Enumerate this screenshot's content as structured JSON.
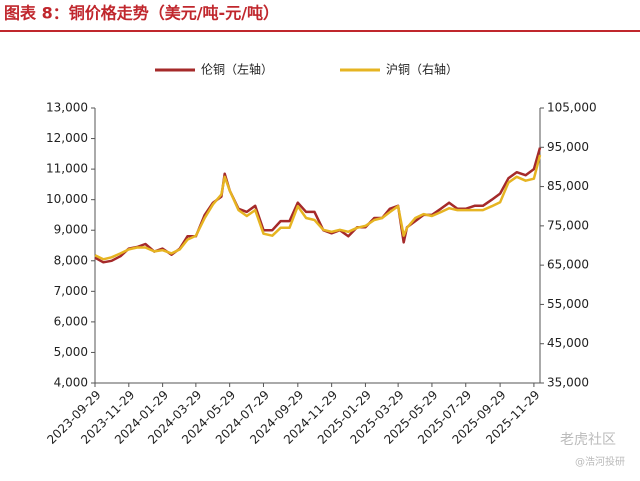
{
  "chart_data": {
    "type": "line",
    "title": "图表 8：铜价格走势（美元/吨-元/吨）",
    "x": [
      "2023-09-29",
      "2023-10-14",
      "2023-10-29",
      "2023-11-14",
      "2023-11-29",
      "2023-12-14",
      "2023-12-29",
      "2024-01-14",
      "2024-01-29",
      "2024-02-14",
      "2024-02-29",
      "2024-03-14",
      "2024-03-29",
      "2024-04-14",
      "2024-04-29",
      "2024-05-14",
      "2024-05-20",
      "2024-05-29",
      "2024-06-14",
      "2024-06-29",
      "2024-07-14",
      "2024-07-29",
      "2024-08-14",
      "2024-08-29",
      "2024-09-14",
      "2024-09-29",
      "2024-10-14",
      "2024-10-29",
      "2024-11-14",
      "2024-11-29",
      "2024-12-14",
      "2024-12-29",
      "2025-01-14",
      "2025-01-29",
      "2025-02-14",
      "2025-02-28",
      "2025-03-14",
      "2025-03-29",
      "2025-04-08",
      "2025-04-14",
      "2025-04-29",
      "2025-05-14",
      "2025-05-29",
      "2025-06-14",
      "2025-06-29",
      "2025-07-14",
      "2025-07-29",
      "2025-08-14",
      "2025-08-29",
      "2025-09-14",
      "2025-09-29",
      "2025-10-14",
      "2025-10-29",
      "2025-11-14",
      "2025-11-29",
      "2025-12-10"
    ],
    "series": [
      {
        "name": "伦铜（左轴）",
        "color": "#a52a2a",
        "axis": "y",
        "values": [
          8100,
          7950,
          8000,
          8150,
          8400,
          8450,
          8550,
          8300,
          8400,
          8200,
          8400,
          8800,
          8800,
          9500,
          9900,
          10100,
          10850,
          10300,
          9700,
          9600,
          9800,
          9000,
          9000,
          9300,
          9300,
          9900,
          9600,
          9600,
          9000,
          8900,
          9000,
          8800,
          9100,
          9100,
          9400,
          9400,
          9700,
          9800,
          8600,
          9100,
          9300,
          9500,
          9500,
          9700,
          9900,
          9700,
          9700,
          9800,
          9800,
          10000,
          10200,
          10700,
          10900,
          10800,
          11000,
          11700
        ]
      },
      {
        "name": "沪铜（右轴）",
        "color": "#e6b422",
        "axis": "y2",
        "values": [
          67500,
          66500,
          67000,
          68000,
          69000,
          69500,
          69500,
          68500,
          68800,
          68000,
          69000,
          71500,
          72500,
          77000,
          80500,
          83000,
          87500,
          84000,
          79000,
          77500,
          79000,
          73000,
          72500,
          74500,
          74500,
          80000,
          77000,
          76500,
          74000,
          73500,
          74000,
          73500,
          74500,
          75000,
          76500,
          77000,
          78500,
          80000,
          72500,
          74500,
          77000,
          78000,
          77500,
          78500,
          79500,
          79000,
          79000,
          79000,
          79000,
          80000,
          81000,
          86000,
          87500,
          86500,
          87000,
          93000
        ]
      }
    ],
    "xlim": [
      "2023-09-29",
      "2025-12-10"
    ],
    "xticks": [
      "2023-09-29",
      "2023-11-29",
      "2024-01-29",
      "2024-03-29",
      "2024-05-29",
      "2024-07-29",
      "2024-09-29",
      "2024-11-29",
      "2025-01-29",
      "2025-03-29",
      "2025-05-29",
      "2025-07-29",
      "2025-09-29",
      "2025-11-29"
    ],
    "ylim": [
      4000,
      13000
    ],
    "yticks": [
      {
        "value": 4000,
        "label": "4,000"
      },
      {
        "value": 5000,
        "label": "5,000"
      },
      {
        "value": 6000,
        "label": "6,000"
      },
      {
        "value": 7000,
        "label": "7,000"
      },
      {
        "value": 8000,
        "label": "8,000"
      },
      {
        "value": 9000,
        "label": "9,000"
      },
      {
        "value": 10000,
        "label": "10,000"
      },
      {
        "value": 11000,
        "label": "11,000"
      },
      {
        "value": 12000,
        "label": "12,000"
      },
      {
        "value": 13000,
        "label": "13,000"
      }
    ],
    "y2lim": [
      35000,
      105000
    ],
    "y2ticks": [
      {
        "value": 35000,
        "label": "35,000"
      },
      {
        "value": 45000,
        "label": "45,000"
      },
      {
        "value": 55000,
        "label": "55,000"
      },
      {
        "value": 65000,
        "label": "65,000"
      },
      {
        "value": 75000,
        "label": "75,000"
      },
      {
        "value": 85000,
        "label": "85,000"
      },
      {
        "value": 95000,
        "label": "95,000"
      },
      {
        "value": 105000,
        "label": "105,000"
      }
    ],
    "grid": false,
    "legend": "top"
  },
  "watermark": {
    "main": "老虎社区",
    "sub": "@浩河投研"
  }
}
